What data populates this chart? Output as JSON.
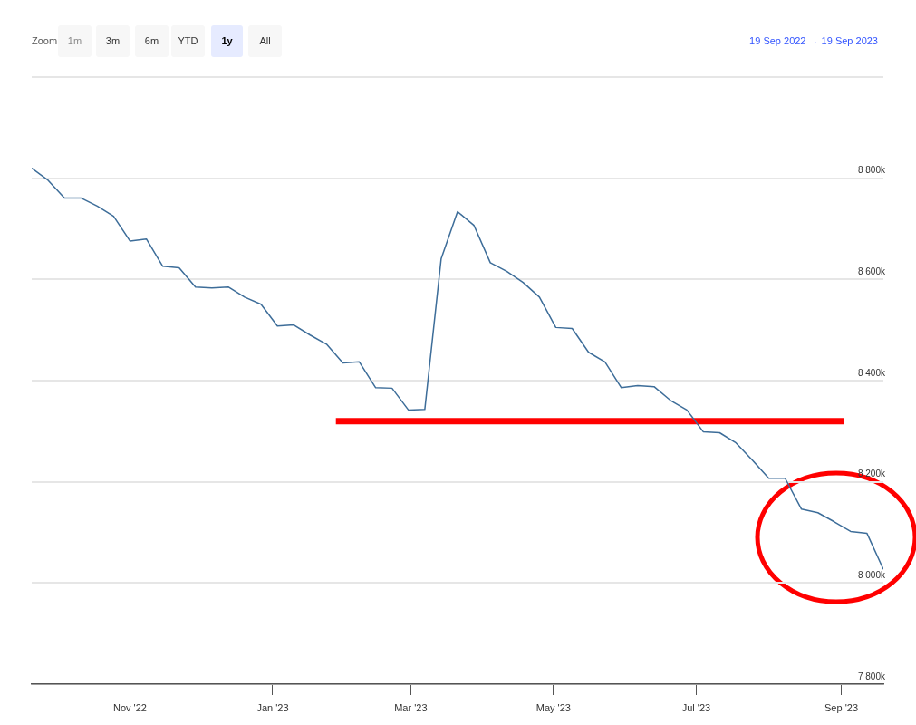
{
  "chart_data": {
    "type": "line",
    "annotations": [
      "Zoom",
      "1m",
      "3m",
      "6m",
      "YTD",
      "1y",
      "All",
      "19 Sep 2022 → 19 Sep 2023"
    ],
    "x": [
      "2022-09-20",
      "2022-09-27",
      "2022-10-04",
      "2022-10-11",
      "2022-10-18",
      "2022-10-25",
      "2022-11-01",
      "2022-11-08",
      "2022-11-15",
      "2022-11-22",
      "2022-11-29",
      "2022-12-06",
      "2022-12-13",
      "2022-12-20",
      "2022-12-27",
      "2023-01-03",
      "2023-01-10",
      "2023-01-17",
      "2023-01-24",
      "2023-01-31",
      "2023-02-07",
      "2023-02-14",
      "2023-02-21",
      "2023-02-28",
      "2023-03-07",
      "2023-03-14",
      "2023-03-21",
      "2023-03-28",
      "2023-04-04",
      "2023-04-11",
      "2023-04-18",
      "2023-04-25",
      "2023-05-02",
      "2023-05-09",
      "2023-05-16",
      "2023-05-23",
      "2023-05-30",
      "2023-06-06",
      "2023-06-13",
      "2023-06-20",
      "2023-06-27",
      "2023-07-04",
      "2023-07-11",
      "2023-07-18",
      "2023-07-25",
      "2023-08-01",
      "2023-08-08",
      "2023-08-15",
      "2023-08-22",
      "2023-08-29",
      "2023-09-05",
      "2023-09-12",
      "2023-09-19"
    ],
    "series": [
      {
        "color": "#3d6d99",
        "values": [
          8820,
          8796,
          8761,
          8761,
          8745,
          8725,
          8676,
          8680,
          8626,
          8623,
          8585,
          8583,
          8585,
          8565,
          8551,
          8508,
          8510,
          8490,
          8472,
          8435,
          8437,
          8386,
          8385,
          8342,
          8343,
          8641,
          8734,
          8707,
          8633,
          8616,
          8594,
          8565,
          8505,
          8503,
          8456,
          8437,
          8386,
          8390,
          8388,
          8361,
          8342,
          8299,
          8297,
          8277,
          8243,
          8207,
          8207,
          8146,
          8139,
          8121,
          8102,
          8098,
          8027
        ]
      },
      {
        "type": "line",
        "color": "#ff0000",
        "x": [
          "2023-01-28",
          "2023-09-02"
        ],
        "values": [
          8320,
          8320
        ]
      }
    ],
    "xlim": [
      "2022-09-20",
      "2023-09-19"
    ],
    "xticks": [
      {
        "value": "2022-11-01",
        "label": "Nov '22"
      },
      {
        "value": "2023-01-01",
        "label": "Jan '23"
      },
      {
        "value": "2023-03-01",
        "label": "Mar '23"
      },
      {
        "value": "2023-05-01",
        "label": "May '23"
      },
      {
        "value": "2023-07-01",
        "label": "Jul '23"
      },
      {
        "value": "2023-09-01",
        "label": "Sep '23"
      }
    ],
    "ylim": [
      7800,
      9000
    ],
    "yticks": [
      {
        "value": 7800,
        "label": "7 800k"
      },
      {
        "value": 8000,
        "label": "8 000k"
      },
      {
        "value": 8200,
        "label": "8 200k"
      },
      {
        "value": 8400,
        "label": "8 400k"
      },
      {
        "value": 8600,
        "label": "8 600k"
      },
      {
        "value": 8800,
        "label": "8 800k"
      },
      {
        "value": 9000,
        "label": null
      }
    ],
    "grid": "y",
    "legend": false,
    "marker": "none",
    "line_style": "solid"
  }
}
